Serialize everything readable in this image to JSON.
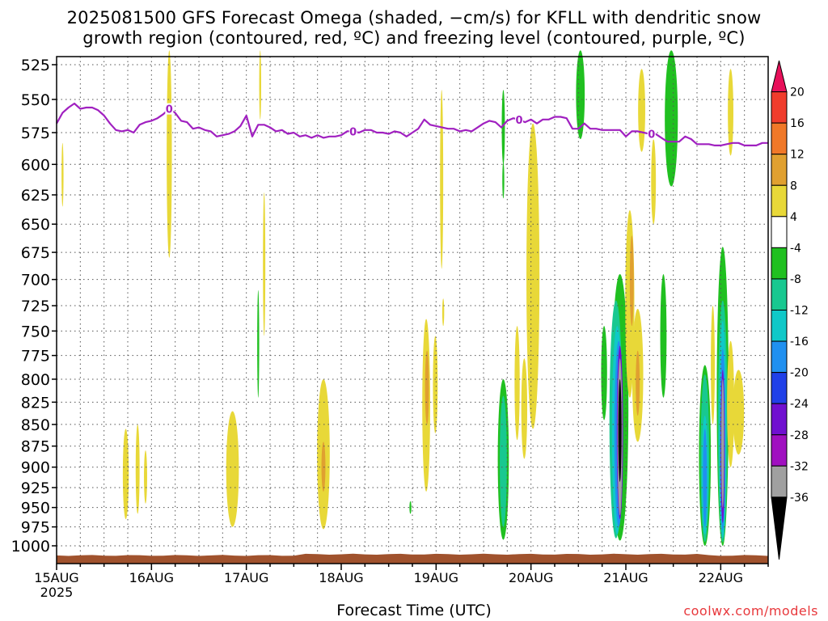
{
  "title_line1": "2025081500 GFS Forecast Omega (shaded, −cm/s) for KFLL with dendritic snow",
  "title_line2": "growth region (contoured, red, ºC) and freezing level (contoured, purple, ºC)",
  "xlabel": "Forecast Time (UTC)",
  "credit": "coolwx.com/models",
  "colors": {
    "freezing_level": "#a020c0",
    "terrain": "#a0522d",
    "grid": "#555555"
  },
  "chart_data": {
    "type": "heatmap",
    "y_axis": {
      "label": "",
      "unit": "hPa",
      "ticks": [
        525,
        550,
        575,
        600,
        625,
        650,
        675,
        700,
        725,
        750,
        775,
        800,
        825,
        850,
        875,
        900,
        925,
        950,
        975,
        1000
      ],
      "range": [
        515,
        1013
      ],
      "scale": "log"
    },
    "x_axis": {
      "range_hours": [
        0,
        180
      ],
      "ticks": [
        {
          "hour": 0,
          "label": "15AUG",
          "sublabel": "2025"
        },
        {
          "hour": 24,
          "label": "16AUG"
        },
        {
          "hour": 48,
          "label": "17AUG"
        },
        {
          "hour": 72,
          "label": "18AUG"
        },
        {
          "hour": 96,
          "label": "19AUG"
        },
        {
          "hour": 120,
          "label": "20AUG"
        },
        {
          "hour": 144,
          "label": "21AUG"
        },
        {
          "hour": 168,
          "label": "22AUG"
        }
      ]
    },
    "colorbar": {
      "labels": [
        20,
        16,
        12,
        8,
        4,
        -4,
        -8,
        -12,
        -16,
        -20,
        -24,
        -28,
        -32,
        -36
      ],
      "colors": [
        "#e8105a",
        "#f03c2c",
        "#f07828",
        "#e0a030",
        "#e8d838",
        "#ffffff",
        "#20c020",
        "#18c890",
        "#10c8c8",
        "#2090f0",
        "#2040e8",
        "#7010d0",
        "#a010c0",
        "#a0a0a0",
        "#000000"
      ]
    },
    "freezing_level": {
      "value_label": "0",
      "hours": [
        0,
        1.5,
        3,
        4.5,
        6,
        7.5,
        9,
        10.5,
        12,
        13.5,
        15,
        16.5,
        18,
        19.5,
        21,
        22.5,
        24,
        25.5,
        27,
        28.5,
        30,
        31.5,
        33,
        34.5,
        36,
        37.5,
        39,
        40.5,
        42,
        43.5,
        45,
        46.5,
        48,
        49.5,
        51,
        52.5,
        54,
        55.5,
        57,
        58.5,
        60,
        61.5,
        63,
        64.5,
        66,
        67.5,
        69,
        70.5,
        72,
        73.5,
        75,
        76.5,
        78,
        79.5,
        81,
        82.5,
        84,
        85.5,
        87,
        88.5,
        90,
        91.5,
        93,
        94.5,
        96,
        97.5,
        99,
        100.5,
        102,
        103.5,
        105,
        106.5,
        108,
        109.5,
        111,
        112.5,
        114,
        115.5,
        117,
        118.5,
        120,
        121.5,
        123,
        124.5,
        126,
        127.5,
        129,
        130.5,
        132,
        133.5,
        135,
        136.5,
        138,
        139.5,
        141,
        142.5,
        144,
        145.5,
        147,
        148.5,
        150,
        151.5,
        153,
        154.5,
        156,
        157.5,
        159,
        160.5,
        162,
        163.5,
        165,
        166.5,
        168,
        169.5,
        171,
        172.5,
        174,
        175.5,
        177,
        178.5,
        180
      ],
      "pressures": [
        568,
        560,
        556,
        553,
        557,
        556,
        556,
        558,
        562,
        568,
        573,
        574,
        573,
        575,
        569,
        567,
        566,
        564,
        561,
        557,
        560,
        566,
        567,
        572,
        571,
        573,
        574,
        578,
        577,
        576,
        574,
        570,
        562,
        578,
        569,
        569,
        571,
        574,
        573,
        576,
        575,
        578,
        577,
        579,
        577,
        579,
        578,
        578,
        577,
        574,
        574,
        575,
        573,
        573,
        575,
        575,
        576,
        574,
        575,
        578,
        575,
        572,
        565,
        569,
        570,
        571,
        572,
        572,
        574,
        573,
        574,
        571,
        568,
        566,
        567,
        571,
        566,
        564,
        565,
        567,
        565,
        568,
        565,
        565,
        563,
        563,
        564,
        572,
        572,
        568,
        572,
        572,
        573,
        573,
        573,
        573,
        578,
        574,
        574,
        575,
        576,
        576,
        579,
        582,
        582,
        582,
        578,
        580,
        584,
        584,
        584,
        585,
        585,
        584,
        583,
        583,
        585,
        585,
        585,
        583,
        583
      ]
    },
    "omega_regions": [
      {
        "hour": 1.5,
        "p_top": 583,
        "p_bot": 635,
        "width_h": 0.5,
        "color": "#e8d838"
      },
      {
        "hour": 28.5,
        "p_top": 515,
        "p_bot": 680,
        "width_h": 1.3,
        "color": "#e8d838"
      },
      {
        "hour": 51.5,
        "p_top": 515,
        "p_bot": 565,
        "width_h": 0.5,
        "color": "#e8d838"
      },
      {
        "hour": 52.5,
        "p_top": 623,
        "p_bot": 755,
        "width_h": 0.6,
        "color": "#e8d838"
      },
      {
        "hour": 51,
        "p_top": 710,
        "p_bot": 820,
        "width_h": 0.5,
        "color": "#20c020"
      },
      {
        "hour": 17.5,
        "p_top": 855,
        "p_bot": 965,
        "width_h": 1.5,
        "color": "#e8d838"
      },
      {
        "hour": 20.5,
        "p_top": 850,
        "p_bot": 958,
        "width_h": 1.0,
        "color": "#e8d838"
      },
      {
        "hour": 22.5,
        "p_top": 880,
        "p_bot": 945,
        "width_h": 0.8,
        "color": "#e8d838"
      },
      {
        "hour": 44.5,
        "p_top": 835,
        "p_bot": 975,
        "width_h": 3.2,
        "color": "#e8d838"
      },
      {
        "hour": 67.5,
        "p_top": 800,
        "p_bot": 978,
        "width_h": 3.2,
        "color": "#e8d838"
      },
      {
        "hour": 67.5,
        "p_top": 870,
        "p_bot": 930,
        "width_h": 1.0,
        "color": "#e0a030"
      },
      {
        "hour": 93.5,
        "p_top": 738,
        "p_bot": 930,
        "width_h": 2.0,
        "color": "#e8d838"
      },
      {
        "hour": 93.7,
        "p_top": 770,
        "p_bot": 850,
        "width_h": 1.0,
        "color": "#e0a030"
      },
      {
        "hour": 95.8,
        "p_top": 755,
        "p_bot": 860,
        "width_h": 1.2,
        "color": "#e8d838"
      },
      {
        "hour": 97.4,
        "p_top": 543,
        "p_bot": 690,
        "width_h": 0.8,
        "color": "#e8d838"
      },
      {
        "hour": 97.8,
        "p_top": 718,
        "p_bot": 745,
        "width_h": 0.4,
        "color": "#e8d838"
      },
      {
        "hour": 89.5,
        "p_top": 942,
        "p_bot": 958,
        "width_h": 0.3,
        "color": "#20c020"
      },
      {
        "hour": 113,
        "p_top": 543,
        "p_bot": 600,
        "width_h": 0.8,
        "color": "#20c020"
      },
      {
        "hour": 113,
        "p_top": 598,
        "p_bot": 628,
        "width_h": 0.4,
        "color": "#20c020"
      },
      {
        "hour": 113,
        "p_top": 800,
        "p_bot": 992,
        "width_h": 2.8,
        "color": "#20c020"
      },
      {
        "hour": 113,
        "p_top": 818,
        "p_bot": 975,
        "width_h": 1.8,
        "color": "#18c890"
      },
      {
        "hour": 116.5,
        "p_top": 745,
        "p_bot": 868,
        "width_h": 1.3,
        "color": "#e8d838"
      },
      {
        "hour": 118.3,
        "p_top": 778,
        "p_bot": 890,
        "width_h": 1.5,
        "color": "#e8d838"
      },
      {
        "hour": 120.5,
        "p_top": 568,
        "p_bot": 855,
        "width_h": 3.3,
        "color": "#e8d838"
      },
      {
        "hour": 132.5,
        "p_top": 515,
        "p_bot": 580,
        "width_h": 2.2,
        "color": "#20c020"
      },
      {
        "hour": 138.5,
        "p_top": 745,
        "p_bot": 845,
        "width_h": 1.5,
        "color": "#20c020"
      },
      {
        "hour": 142.5,
        "p_top": 695,
        "p_bot": 993,
        "width_h": 4.3,
        "color": "#20c020"
      },
      {
        "hour": 141.5,
        "p_top": 720,
        "p_bot": 990,
        "width_h": 3.3,
        "color": "#18c890"
      },
      {
        "hour": 141.8,
        "p_top": 745,
        "p_bot": 985,
        "width_h": 2.6,
        "color": "#10c8c8"
      },
      {
        "hour": 142.2,
        "p_top": 760,
        "p_bot": 975,
        "width_h": 2.2,
        "color": "#2090f0"
      },
      {
        "hour": 142.5,
        "p_top": 765,
        "p_bot": 965,
        "width_h": 1.6,
        "color": "#7010d0"
      },
      {
        "hour": 142.5,
        "p_top": 778,
        "p_bot": 960,
        "width_h": 1.2,
        "color": "#a0a0a0"
      },
      {
        "hour": 142.5,
        "p_top": 800,
        "p_bot": 918,
        "width_h": 0.8,
        "color": "#000000"
      },
      {
        "hour": 145,
        "p_top": 638,
        "p_bot": 820,
        "width_h": 2.3,
        "color": "#e8d838"
      },
      {
        "hour": 145.5,
        "p_top": 660,
        "p_bot": 745,
        "width_h": 1.0,
        "color": "#e0a030"
      },
      {
        "hour": 147,
        "p_top": 728,
        "p_bot": 870,
        "width_h": 2.8,
        "color": "#e8d838"
      },
      {
        "hour": 147,
        "p_top": 770,
        "p_bot": 840,
        "width_h": 1.0,
        "color": "#e0a030"
      },
      {
        "hour": 148,
        "p_top": 528,
        "p_bot": 590,
        "width_h": 1.8,
        "color": "#e8d838"
      },
      {
        "hour": 151,
        "p_top": 580,
        "p_bot": 650,
        "width_h": 1.2,
        "color": "#e8d838"
      },
      {
        "hour": 153.5,
        "p_top": 695,
        "p_bot": 820,
        "width_h": 1.6,
        "color": "#20c020"
      },
      {
        "hour": 155.5,
        "p_top": 515,
        "p_bot": 618,
        "width_h": 3.3,
        "color": "#20c020"
      },
      {
        "hour": 164,
        "p_top": 785,
        "p_bot": 1000,
        "width_h": 3.0,
        "color": "#20c020"
      },
      {
        "hour": 164,
        "p_top": 795,
        "p_bot": 995,
        "width_h": 2.2,
        "color": "#18c890"
      },
      {
        "hour": 164,
        "p_top": 840,
        "p_bot": 985,
        "width_h": 1.6,
        "color": "#10c8c8"
      },
      {
        "hour": 164,
        "p_top": 855,
        "p_bot": 975,
        "width_h": 1.0,
        "color": "#2090f0"
      },
      {
        "hour": 166,
        "p_top": 725,
        "p_bot": 850,
        "width_h": 1.0,
        "color": "#e8d838"
      },
      {
        "hour": 168.5,
        "p_top": 670,
        "p_bot": 1000,
        "width_h": 3.0,
        "color": "#20c020"
      },
      {
        "hour": 168.5,
        "p_top": 720,
        "p_bot": 995,
        "width_h": 2.4,
        "color": "#18c890"
      },
      {
        "hour": 168.5,
        "p_top": 740,
        "p_bot": 990,
        "width_h": 1.8,
        "color": "#10c8c8"
      },
      {
        "hour": 168.5,
        "p_top": 768,
        "p_bot": 980,
        "width_h": 1.4,
        "color": "#2090f0"
      },
      {
        "hour": 168.5,
        "p_top": 790,
        "p_bot": 970,
        "width_h": 1.0,
        "color": "#7010d0"
      },
      {
        "hour": 168.5,
        "p_top": 800,
        "p_bot": 950,
        "width_h": 0.7,
        "color": "#a0a0a0"
      },
      {
        "hour": 170.5,
        "p_top": 760,
        "p_bot": 900,
        "width_h": 1.8,
        "color": "#e8d838"
      },
      {
        "hour": 172.5,
        "p_top": 790,
        "p_bot": 885,
        "width_h": 2.8,
        "color": "#e8d838"
      },
      {
        "hour": 170.5,
        "p_top": 528,
        "p_bot": 593,
        "width_h": 1.4,
        "color": "#e8d838"
      }
    ]
  }
}
